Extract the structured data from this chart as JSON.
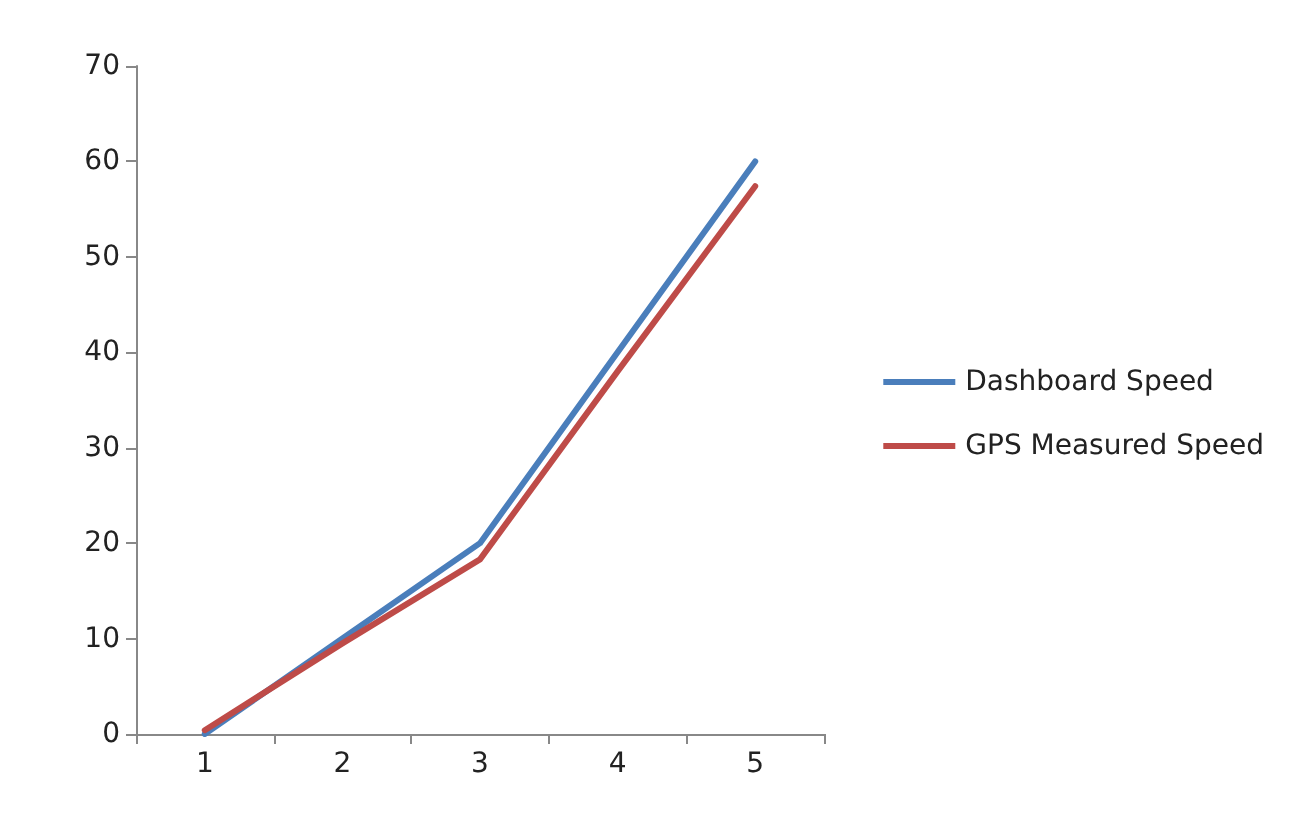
{
  "chart_data": {
    "type": "line",
    "categories": [
      "1",
      "2",
      "3",
      "4",
      "5"
    ],
    "series": [
      {
        "name": "Dashboard Speed",
        "color": "#4a7ebb",
        "values": [
          0,
          10,
          20,
          40,
          60
        ]
      },
      {
        "name": "GPS Measured Speed",
        "color": "#be4b48",
        "values": [
          0.4,
          9.5,
          18.3,
          38,
          57.4
        ]
      }
    ],
    "ylim": [
      0,
      70
    ],
    "yticks": [
      0,
      10,
      20,
      30,
      40,
      50,
      60,
      70
    ],
    "grid": false,
    "legend": "right",
    "marker": "none",
    "line_style": "solid"
  }
}
